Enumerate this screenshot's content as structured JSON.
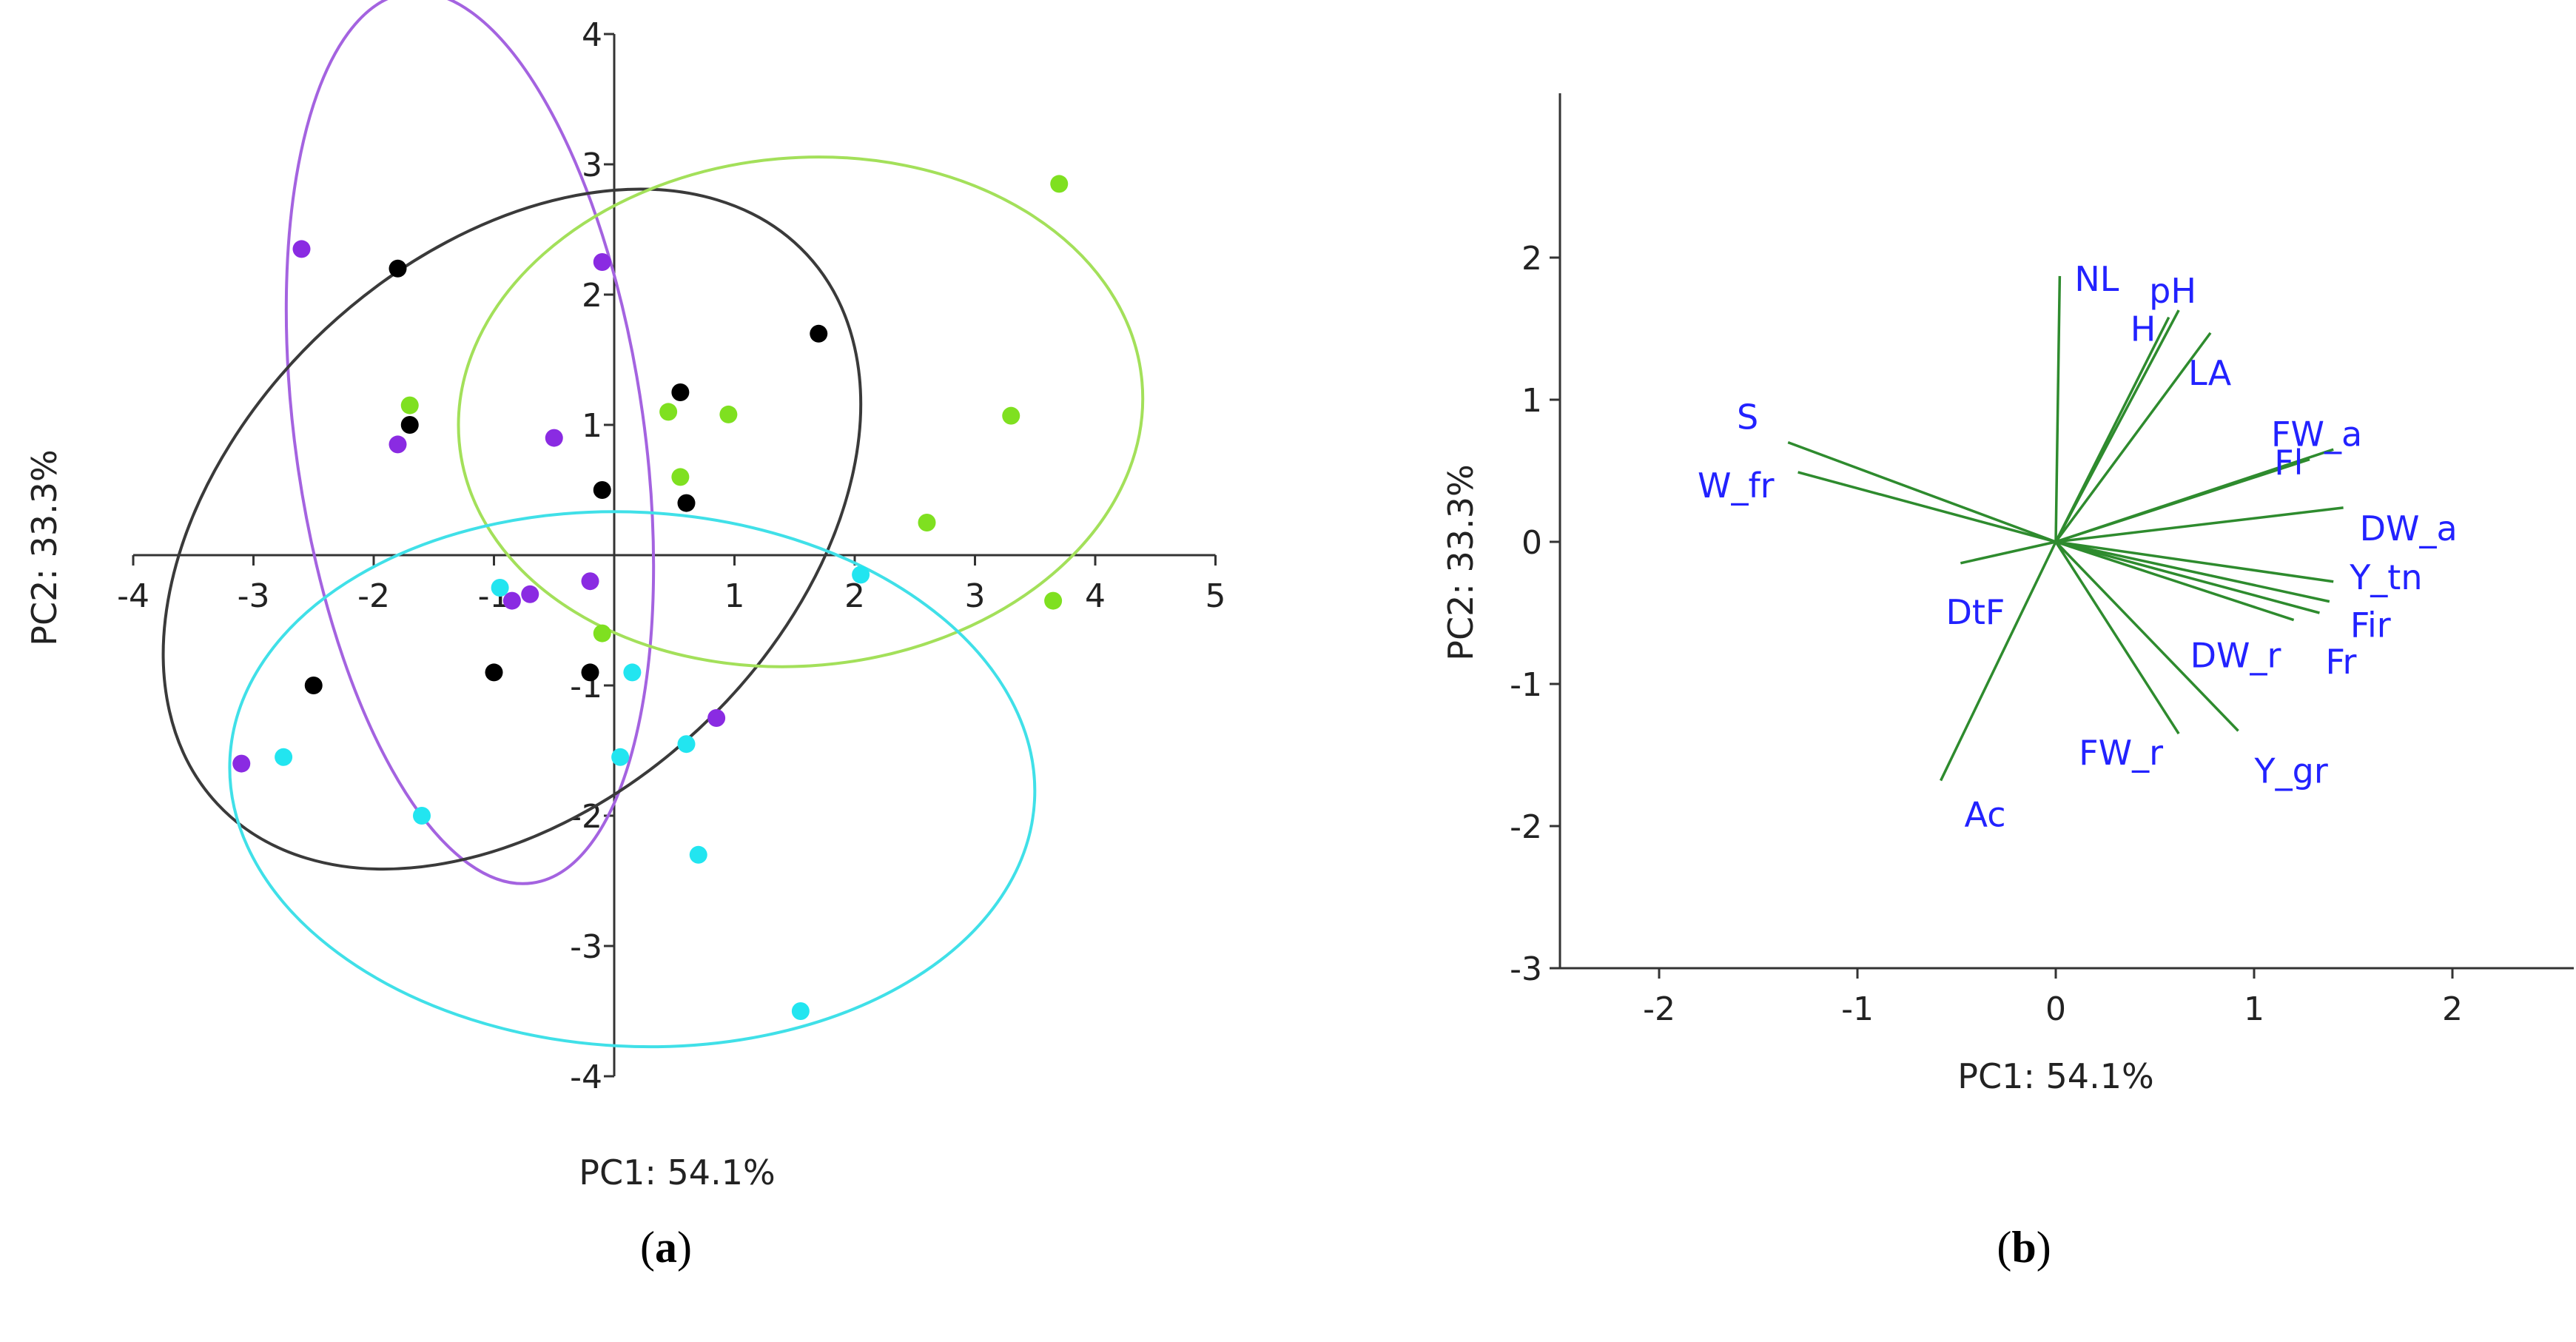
{
  "chart_data": [
    {
      "id": "a",
      "type": "scatter",
      "caption_letter": "a",
      "xlabel": "PC1: 54.1%",
      "ylabel": "PC2: 33.3%",
      "xlim": [
        -4,
        5
      ],
      "ylim": [
        -4,
        4
      ],
      "x_ticks": [
        "-4",
        "-3",
        "-2",
        "-1",
        "1",
        "2",
        "3",
        "4",
        "5"
      ],
      "y_ticks": [
        "-4",
        "-3",
        "-2",
        "-1",
        "1",
        "2",
        "3",
        "4"
      ],
      "series": [
        {
          "name": "group-black",
          "color": "#000000",
          "points": [
            [
              -1.8,
              2.2
            ],
            [
              -1.7,
              1.0
            ],
            [
              1.7,
              1.7
            ],
            [
              0.55,
              1.25
            ],
            [
              -0.1,
              0.5
            ],
            [
              0.6,
              0.4
            ],
            [
              -2.5,
              -1.0
            ],
            [
              -1.0,
              -0.9
            ],
            [
              -0.2,
              -0.9
            ]
          ]
        },
        {
          "name": "group-purple",
          "color": "#8a2be2",
          "points": [
            [
              -2.6,
              2.35
            ],
            [
              -0.1,
              2.25
            ],
            [
              -1.8,
              0.85
            ],
            [
              -0.5,
              0.9
            ],
            [
              -0.2,
              -0.2
            ],
            [
              -0.7,
              -0.3
            ],
            [
              -0.85,
              -0.35
            ],
            [
              0.85,
              -1.25
            ],
            [
              -3.1,
              -1.6
            ]
          ]
        },
        {
          "name": "group-green",
          "color": "#7fe020",
          "points": [
            [
              3.7,
              2.85
            ],
            [
              -1.7,
              1.15
            ],
            [
              0.45,
              1.1
            ],
            [
              0.95,
              1.08
            ],
            [
              3.3,
              1.07
            ],
            [
              0.55,
              0.6
            ],
            [
              2.6,
              0.25
            ],
            [
              3.65,
              -0.35
            ],
            [
              -0.1,
              -0.6
            ]
          ]
        },
        {
          "name": "group-cyan",
          "color": "#22e5f0",
          "points": [
            [
              2.05,
              -0.15
            ],
            [
              -0.95,
              -0.25
            ],
            [
              0.15,
              -0.9
            ],
            [
              -2.75,
              -1.55
            ],
            [
              0.6,
              -1.45
            ],
            [
              0.05,
              -1.55
            ],
            [
              -1.6,
              -2.0
            ],
            [
              0.7,
              -2.3
            ],
            [
              1.55,
              -3.5
            ]
          ]
        }
      ],
      "ellipses": [
        {
          "name": "ellipse-purple",
          "color": "#a463e0",
          "center": [
            -1.2,
            0.9
          ],
          "rx": 1.45,
          "ry": 3.45,
          "rotation": 8
        },
        {
          "name": "ellipse-black",
          "color": "#3a3a3a",
          "center": [
            -0.85,
            0.2
          ],
          "rx": 3.35,
          "ry": 2.1,
          "rotation": 43
        },
        {
          "name": "ellipse-green",
          "color": "#a3e05a",
          "center": [
            1.55,
            1.1
          ],
          "rx": 2.85,
          "ry": 1.95,
          "rotation": 5
        },
        {
          "name": "ellipse-cyan",
          "color": "#40e0e8",
          "center": [
            0.15,
            -1.72
          ],
          "rx": 3.35,
          "ry": 2.05,
          "rotation": -3
        }
      ]
    },
    {
      "id": "b",
      "type": "biplot-vectors",
      "caption_letter": "b",
      "xlabel": "PC1: 54.1%",
      "ylabel": "PC2: 33.3%",
      "xlim": [
        -2.5,
        2.5
      ],
      "ylim": [
        -3,
        3
      ],
      "x_ticks": [
        "-2",
        "-1",
        "0",
        "1",
        "2"
      ],
      "y_ticks": [
        "-3",
        "-2",
        "-1",
        "0",
        "1",
        "2"
      ],
      "line_color": "#2e8b2e",
      "label_color": "#2222ff",
      "vectors": [
        {
          "label": "NL",
          "x": 0.02,
          "y": 1.87
        },
        {
          "label": "pH",
          "x": 0.62,
          "y": 1.63
        },
        {
          "label": "H",
          "x": 0.57,
          "y": 1.58
        },
        {
          "label": "LA",
          "x": 0.78,
          "y": 1.47
        },
        {
          "label": "FW_a",
          "x": 1.28,
          "y": 0.58
        },
        {
          "label": "Fl",
          "x": 1.4,
          "y": 0.65
        },
        {
          "label": "S",
          "x": -1.35,
          "y": 0.7
        },
        {
          "label": "W_fr",
          "x": -1.3,
          "y": 0.49
        },
        {
          "label": "DW_a",
          "x": 1.45,
          "y": 0.24
        },
        {
          "label": "DtF",
          "x": -0.48,
          "y": -0.15
        },
        {
          "label": "Y_tn",
          "x": 1.4,
          "y": -0.28
        },
        {
          "label": "Fir",
          "x": 1.38,
          "y": -0.42
        },
        {
          "label": "Fr",
          "x": 1.33,
          "y": -0.5
        },
        {
          "label": "DW_r",
          "x": 1.2,
          "y": -0.55
        },
        {
          "label": "FW_r",
          "x": 0.62,
          "y": -1.35
        },
        {
          "label": "Y_gr",
          "x": 0.92,
          "y": -1.33
        },
        {
          "label": "Ac",
          "x": -0.58,
          "y": -1.68
        }
      ]
    }
  ]
}
